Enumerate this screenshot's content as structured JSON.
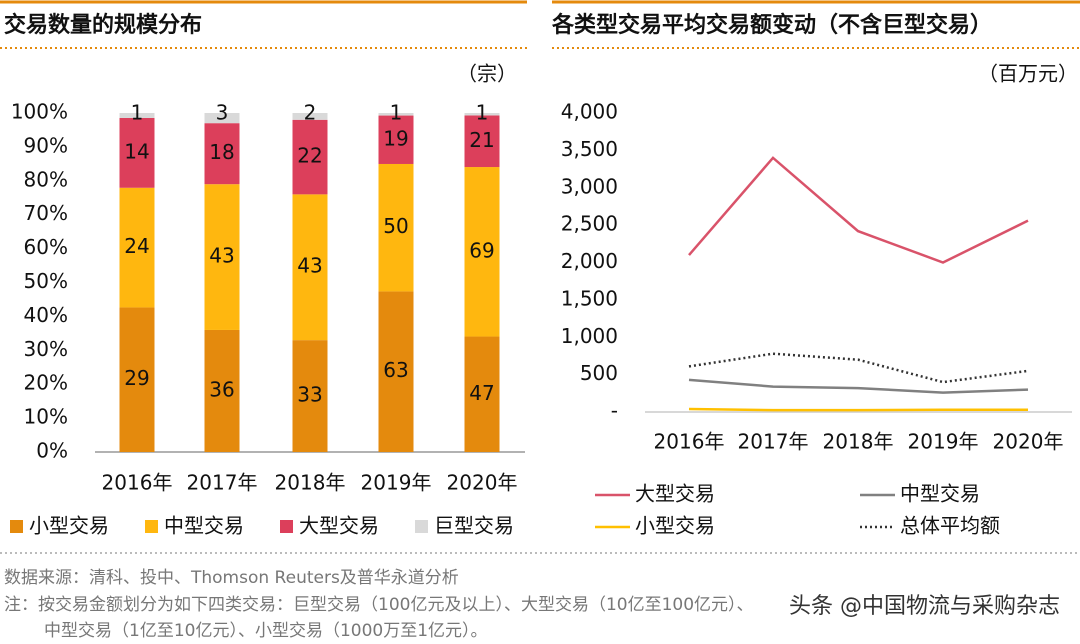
{
  "chart_data": [
    {
      "type": "bar",
      "stack": "percent",
      "title": "交易数量的规模分布",
      "unit": "（宗）",
      "categories": [
        "2016年",
        "2017年",
        "2018年",
        "2019年",
        "2020年"
      ],
      "series": [
        {
          "name": "小型交易",
          "color": "#e48a0d",
          "values": [
            29,
            36,
            33,
            63,
            47
          ]
        },
        {
          "name": "中型交易",
          "color": "#ffb70f",
          "values": [
            24,
            43,
            43,
            50,
            69
          ]
        },
        {
          "name": "大型交易",
          "color": "#dc3f5b",
          "values": [
            14,
            18,
            22,
            19,
            21
          ]
        },
        {
          "name": "巨型交易",
          "color": "#d9d9d9",
          "values": [
            1,
            3,
            2,
            1,
            1
          ]
        }
      ],
      "ylim": [
        0,
        100
      ],
      "yticks": [
        {
          "value": 0,
          "label": "0%"
        },
        {
          "value": 10,
          "label": "10%"
        },
        {
          "value": 20,
          "label": "20%"
        },
        {
          "value": 30,
          "label": "30%"
        },
        {
          "value": 40,
          "label": "40%"
        },
        {
          "value": 50,
          "label": "50%"
        },
        {
          "value": 60,
          "label": "60%"
        },
        {
          "value": 70,
          "label": "70%"
        },
        {
          "value": 80,
          "label": "80%"
        },
        {
          "value": 90,
          "label": "90%"
        },
        {
          "value": 100,
          "label": "100%"
        }
      ],
      "grid": false
    },
    {
      "type": "line",
      "title": "各类型交易平均交易额变动（不含巨型交易）",
      "unit": "（百万元）",
      "categories": [
        "2016年",
        "2017年",
        "2018年",
        "2019年",
        "2020年"
      ],
      "series": [
        {
          "name": "大型交易",
          "color": "#d9536a",
          "dash": "solid",
          "values": [
            2100,
            3400,
            2420,
            2000,
            2560
          ]
        },
        {
          "name": "中型交易",
          "color": "#808080",
          "dash": "solid",
          "values": [
            430,
            340,
            320,
            260,
            300
          ]
        },
        {
          "name": "小型交易",
          "color": "#ffc000",
          "dash": "solid",
          "values": [
            40,
            25,
            25,
            30,
            30
          ]
        },
        {
          "name": "总体平均额",
          "color": "#333333",
          "dash": "dotted",
          "values": [
            610,
            780,
            700,
            400,
            550
          ]
        }
      ],
      "ylim": [
        0,
        4000
      ],
      "yticks": [
        {
          "value": 0,
          "label": "-"
        },
        500,
        {
          "value": 1000,
          "label": "1,000"
        },
        {
          "value": 1500,
          "label": "1,500"
        },
        {
          "value": 2000,
          "label": "2,000"
        },
        {
          "value": 2500,
          "label": "2,500"
        },
        {
          "value": 3000,
          "label": "3,000"
        },
        {
          "value": 3500,
          "label": "3,500"
        },
        {
          "value": 4000,
          "label": "4,000"
        }
      ],
      "grid": false
    }
  ],
  "footer": {
    "source": "数据来源：清科、投中、Thomson Reuters及普华永道分析",
    "notes": [
      "注：按交易金额划分为如下四类交易：巨型交易（100亿元及以上）、大型交易（10亿至100亿元）、",
      "中型交易（1亿至10亿元）、小型交易（1000万至1亿元）。"
    ],
    "watermark": "头条 @中国物流与采购杂志"
  }
}
